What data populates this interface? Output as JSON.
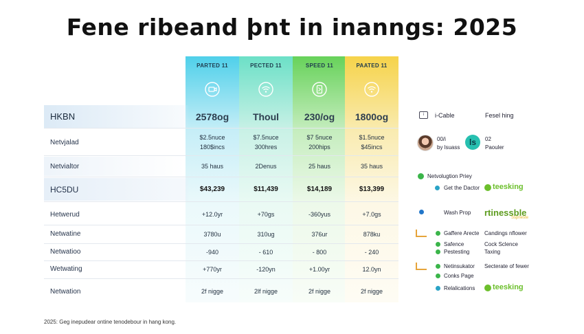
{
  "title": "Fene ribeand þnt in inanngs: 2025",
  "plans": [
    {
      "head": "PARTED 11",
      "icon": "router-icon",
      "top_color": "#4fd0ea",
      "bottom_color": "#ebf9fb",
      "icon_bg": "#38c4e2"
    },
    {
      "head": "PECTED 11",
      "icon": "wifi-icon",
      "top_color": "#6ce0c7",
      "bottom_color": "#eafaf4",
      "icon_bg": "#5ad6bb"
    },
    {
      "head": "SPEED 11",
      "icon": "phone-icon",
      "top_color": "#67d25a",
      "bottom_color": "#edf9ea",
      "icon_bg": "#4fc246"
    },
    {
      "head": "PAATED 11",
      "icon": "wifi-icon",
      "top_color": "#f6d34a",
      "bottom_color": "#fdf8e6",
      "icon_bg": "#f2c63a"
    }
  ],
  "rows": [
    {
      "label": "HKBN",
      "kind": "header",
      "cells": [
        [
          "2578og"
        ],
        [
          "Thoul"
        ],
        [
          "230/og"
        ],
        [
          "1800og"
        ]
      ]
    },
    {
      "label": "Netvjalad",
      "kind": "normal",
      "cells": [
        [
          "$2.5nuce",
          "180$incs"
        ],
        [
          "$7.5nuce",
          "300hres"
        ],
        [
          "$7 5nuce",
          "200hips"
        ],
        [
          "$1.5nuce",
          "$45incs"
        ]
      ]
    },
    {
      "label": "Netvialtor",
      "kind": "normal",
      "cells": [
        [
          "35 haus"
        ],
        [
          "2Denus"
        ],
        [
          "25 haus"
        ],
        [
          "35 haus"
        ]
      ]
    },
    {
      "label": "HC5DU",
      "kind": "price",
      "cells": [
        [
          "$43,239"
        ],
        [
          "$11,439"
        ],
        [
          "$14,189"
        ],
        [
          "$13,399"
        ]
      ]
    },
    {
      "label": "Hetwerud",
      "kind": "normal",
      "cells": [
        [
          "+12.0yr"
        ],
        [
          "+70gs"
        ],
        [
          "-360yus"
        ],
        [
          "+7.0gs"
        ]
      ]
    },
    {
      "label": "Netwatine",
      "kind": "normal",
      "cells": [
        [
          "3780u"
        ],
        [
          "310ug"
        ],
        [
          "376ur"
        ],
        [
          "878ku"
        ]
      ]
    },
    {
      "label": "Netwatioo",
      "kind": "normal",
      "cells": [
        [
          "-940"
        ],
        [
          "- 610"
        ],
        [
          "- 800"
        ],
        [
          "- 240"
        ]
      ]
    },
    {
      "label": "Wetwating",
      "kind": "normal",
      "cells": [
        [
          "+770yr"
        ],
        [
          "-120yn"
        ],
        [
          "+1.00yr"
        ],
        [
          "12.0yn"
        ]
      ]
    },
    {
      "label": "Netwation",
      "kind": "normal",
      "cells": [
        [
          "2f nigge"
        ],
        [
          "2lf nigge"
        ],
        [
          "2f nigge"
        ],
        [
          "2f nigge"
        ]
      ]
    }
  ],
  "side": {
    "icable": "i-Cable",
    "fesel": "Fesel hing",
    "avatar_top": "00/i",
    "avatar_bottom": "by lsuass",
    "badge_letter": "ls",
    "badge_top": "02",
    "badge_bottom": "Paouler",
    "newplan": "Netvolugtion Priey",
    "get_doctor": "Get the Dactor",
    "teesking_1": "teesking",
    "wash": "Wash Prop",
    "rtinessble": "rtinessble",
    "rtinessble_sub": "Ssprieste",
    "caffere": "Gaffere Arecte",
    "candings": "Candings nflower",
    "safence": "Safence",
    "cock": "Cock Sclence",
    "pestesting": "Pestesting",
    "toxing": "Taxing",
    "netinsulator": "Netinsukator",
    "secterate": "Secterate of fewer",
    "conks": "Conks Page",
    "relalications": "Relalications",
    "teesking_2": "teesking"
  },
  "footer": "2025: Geg inepudear ontine tenodebour in hang kong."
}
